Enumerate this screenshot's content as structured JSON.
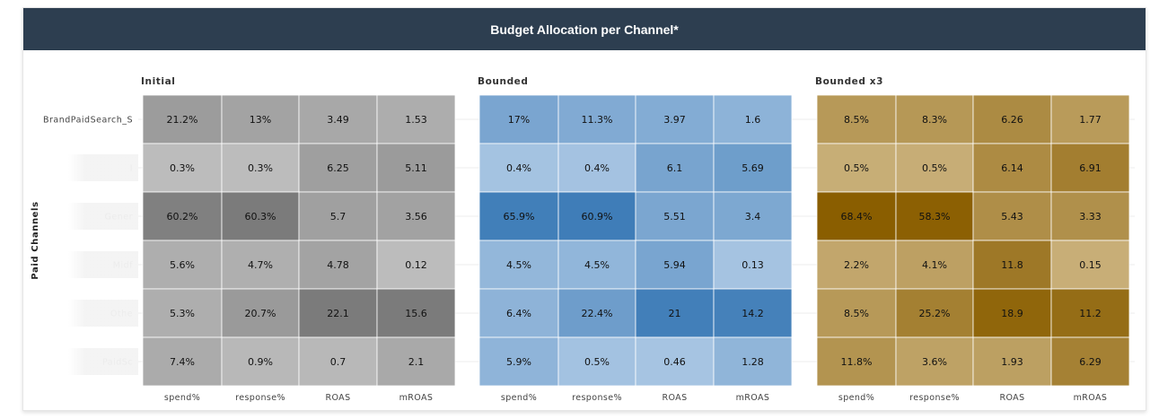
{
  "header": {
    "title": "Budget Allocation per Channel*"
  },
  "chart_data": {
    "type": "heatmap",
    "title": "Budget Allocation per Channel*",
    "ylabel": "Paid Channels",
    "columns": [
      "spend%",
      "response%",
      "ROAS",
      "mROAS"
    ],
    "rows": [
      "BrandPaidSearch_S",
      "I",
      "Gener",
      "Midf",
      "Othe",
      "PaidSc"
    ],
    "facets": [
      {
        "name": "Initial",
        "base_color": "#7b7b7b",
        "light_color": "#bcbcbc",
        "labels": [
          [
            "21.2%",
            "13%",
            "3.49",
            "1.53"
          ],
          [
            "0.3%",
            "0.3%",
            "6.25",
            "5.11"
          ],
          [
            "60.2%",
            "60.3%",
            "5.7",
            "3.56"
          ],
          [
            "5.6%",
            "4.7%",
            "4.78",
            "0.12"
          ],
          [
            "5.3%",
            "20.7%",
            "22.1",
            "15.6"
          ],
          [
            "7.4%",
            "0.9%",
            "0.7",
            "2.1"
          ]
        ],
        "values": [
          [
            21.2,
            13,
            3.49,
            1.53
          ],
          [
            0.3,
            0.3,
            6.25,
            5.11
          ],
          [
            60.2,
            60.3,
            5.7,
            3.56
          ],
          [
            5.6,
            4.7,
            4.78,
            0.12
          ],
          [
            5.3,
            20.7,
            22.1,
            15.6
          ],
          [
            7.4,
            0.9,
            0.7,
            2.1
          ]
        ]
      },
      {
        "name": "Bounded",
        "base_color": "#3f7db8",
        "light_color": "#a6c4e2",
        "labels": [
          [
            "17%",
            "11.3%",
            "3.97",
            "1.6"
          ],
          [
            "0.4%",
            "0.4%",
            "6.1",
            "5.69"
          ],
          [
            "65.9%",
            "60.9%",
            "5.51",
            "3.4"
          ],
          [
            "4.5%",
            "4.5%",
            "5.94",
            "0.13"
          ],
          [
            "6.4%",
            "22.4%",
            "21",
            "14.2"
          ],
          [
            "5.9%",
            "0.5%",
            "0.46",
            "1.28"
          ]
        ],
        "values": [
          [
            17,
            11.3,
            3.97,
            1.6
          ],
          [
            0.4,
            0.4,
            6.1,
            5.69
          ],
          [
            65.9,
            60.9,
            5.51,
            3.4
          ],
          [
            4.5,
            4.5,
            5.94,
            0.13
          ],
          [
            6.4,
            22.4,
            21,
            14.2
          ],
          [
            5.9,
            0.5,
            0.46,
            1.28
          ]
        ]
      },
      {
        "name": "Bounded x3",
        "base_color": "#8a5e00",
        "light_color": "#c9b07a",
        "labels": [
          [
            "8.5%",
            "8.3%",
            "6.26",
            "1.77"
          ],
          [
            "0.5%",
            "0.5%",
            "6.14",
            "6.91"
          ],
          [
            "68.4%",
            "58.3%",
            "5.43",
            "3.33"
          ],
          [
            "2.2%",
            "4.1%",
            "11.8",
            "0.15"
          ],
          [
            "8.5%",
            "25.2%",
            "18.9",
            "11.2"
          ],
          [
            "11.8%",
            "3.6%",
            "1.93",
            "6.29"
          ]
        ],
        "values": [
          [
            8.5,
            8.3,
            6.26,
            1.77
          ],
          [
            0.5,
            0.5,
            6.14,
            6.91
          ],
          [
            68.4,
            58.3,
            5.43,
            3.33
          ],
          [
            2.2,
            4.1,
            11.8,
            0.15
          ],
          [
            8.5,
            25.2,
            18.9,
            11.2
          ],
          [
            11.8,
            3.6,
            1.93,
            6.29
          ]
        ]
      }
    ]
  }
}
